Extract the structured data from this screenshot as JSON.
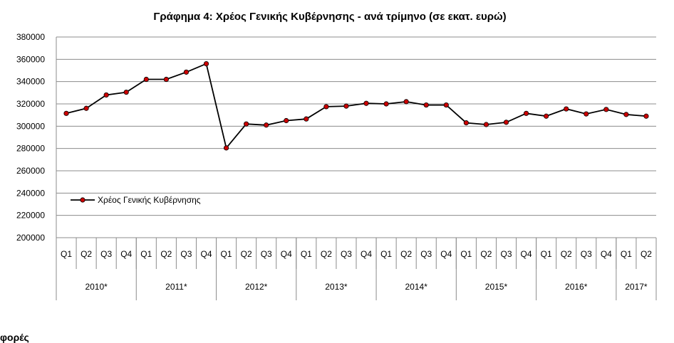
{
  "chart_data": {
    "type": "line",
    "title": "Γράφημα 4: Χρέος Γενικής Κυβέρνησης - ανά τρίμηνο (σε εκατ. ευρώ)",
    "xlabel": "",
    "ylabel": "",
    "ylim": [
      200000,
      380000
    ],
    "yticks": [
      200000,
      220000,
      240000,
      260000,
      280000,
      300000,
      320000,
      340000,
      360000,
      380000
    ],
    "ytick_labels": [
      "200000",
      "220000",
      "240000",
      "260000",
      "280000",
      "300000",
      "320000",
      "340000",
      "360000",
      "380000"
    ],
    "grid": true,
    "legend_position": "left",
    "quarters": [
      "Q1",
      "Q2",
      "Q3",
      "Q4",
      "Q1",
      "Q2",
      "Q3",
      "Q4",
      "Q1",
      "Q2",
      "Q3",
      "Q4",
      "Q1",
      "Q2",
      "Q3",
      "Q4",
      "Q1",
      "Q2",
      "Q3",
      "Q4",
      "Q1",
      "Q2",
      "Q3",
      "Q4",
      "Q1",
      "Q2",
      "Q3",
      "Q4",
      "Q1",
      "Q2"
    ],
    "years": [
      {
        "label": "2010*",
        "quarters": 4
      },
      {
        "label": "2011*",
        "quarters": 4
      },
      {
        "label": "2012*",
        "quarters": 4
      },
      {
        "label": "2013*",
        "quarters": 4
      },
      {
        "label": "2014*",
        "quarters": 4
      },
      {
        "label": "2015*",
        "quarters": 4
      },
      {
        "label": "2016*",
        "quarters": 4
      },
      {
        "label": "2017*",
        "quarters": 2
      }
    ],
    "series": [
      {
        "name": "Χρέος Γενικής Κυβέρνησης",
        "color": "#000000",
        "marker_color": "#cc0000",
        "values": [
          311500,
          316000,
          328000,
          330500,
          342000,
          342000,
          348500,
          356000,
          280500,
          302000,
          301000,
          305000,
          306500,
          317500,
          318000,
          320500,
          320000,
          322000,
          319000,
          319000,
          303000,
          301500,
          303500,
          311500,
          309000,
          315500,
          311000,
          315000,
          310500,
          309000
        ]
      }
    ]
  },
  "footer_text": "φορές"
}
